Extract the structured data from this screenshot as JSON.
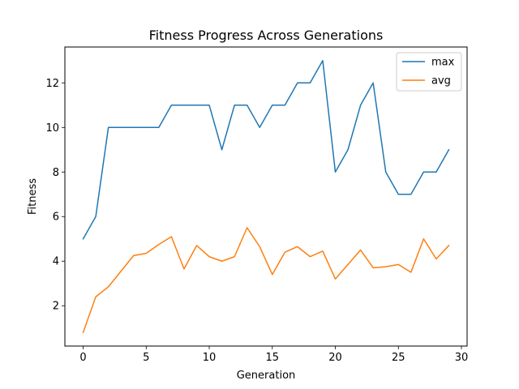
{
  "chart_data": {
    "type": "line",
    "title": "Fitness Progress Across Generations",
    "xlabel": "Generation",
    "ylabel": "Fitness",
    "xlim": [
      -1.45,
      30.45
    ],
    "ylim": [
      0.19,
      13.61
    ],
    "xticks": [
      0,
      5,
      10,
      15,
      20,
      25,
      30
    ],
    "yticks": [
      2,
      4,
      6,
      8,
      10,
      12
    ],
    "grid": false,
    "legend_position": "top-right",
    "x": [
      0,
      1,
      2,
      3,
      4,
      5,
      6,
      7,
      8,
      9,
      10,
      11,
      12,
      13,
      14,
      15,
      16,
      17,
      18,
      19,
      20,
      21,
      22,
      23,
      24,
      25,
      26,
      27,
      28,
      29
    ],
    "series": [
      {
        "name": "max",
        "color": "#1f77b4",
        "values": [
          5,
          6,
          10,
          10,
          10,
          10,
          10,
          11,
          11,
          11,
          11,
          9,
          11,
          11,
          10,
          11,
          11,
          12,
          12,
          13,
          8,
          9,
          11,
          12,
          8,
          7,
          7,
          8,
          8,
          9
        ]
      },
      {
        "name": "avg",
        "color": "#ff7f0e",
        "values": [
          0.8,
          2.4,
          2.85,
          3.55,
          4.25,
          4.35,
          4.75,
          5.1,
          3.65,
          4.7,
          4.2,
          4.0,
          4.2,
          5.5,
          4.65,
          3.4,
          4.4,
          4.65,
          4.2,
          4.45,
          3.2,
          3.85,
          4.5,
          3.7,
          3.75,
          3.85,
          3.5,
          5.0,
          4.1,
          4.7
        ]
      }
    ]
  }
}
